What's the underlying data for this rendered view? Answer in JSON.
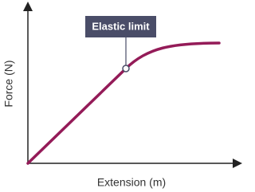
{
  "x_label": "Extension (m)",
  "y_label": "Force (N)",
  "annotation": "Elastic limit"
}
